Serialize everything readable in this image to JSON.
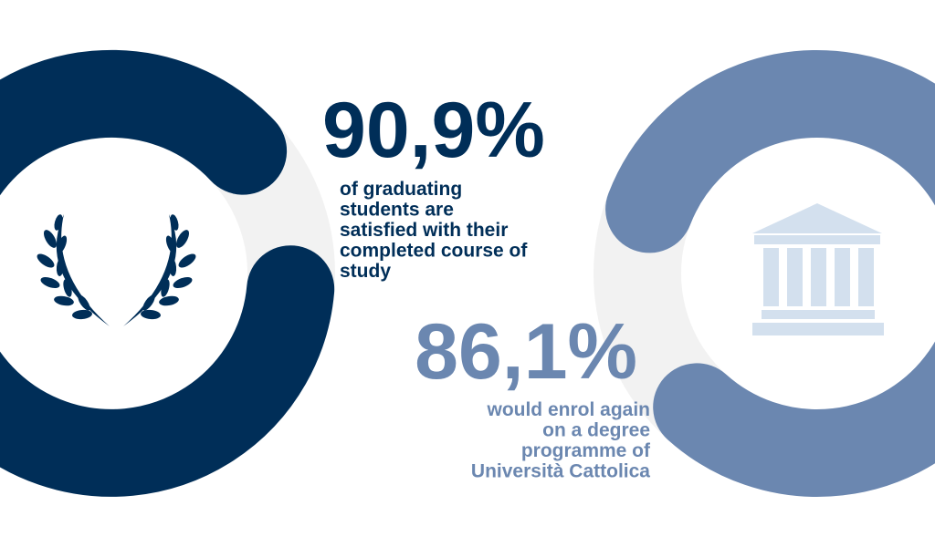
{
  "stats": [
    {
      "value": "90,9%",
      "description": [
        "of graduating",
        "students are",
        "satisfied with their",
        "completed course of",
        "study"
      ]
    },
    {
      "value": "86,1%",
      "description": [
        "would enrol again",
        "on a degree",
        "programme of",
        "Università Cattolica"
      ]
    }
  ]
}
